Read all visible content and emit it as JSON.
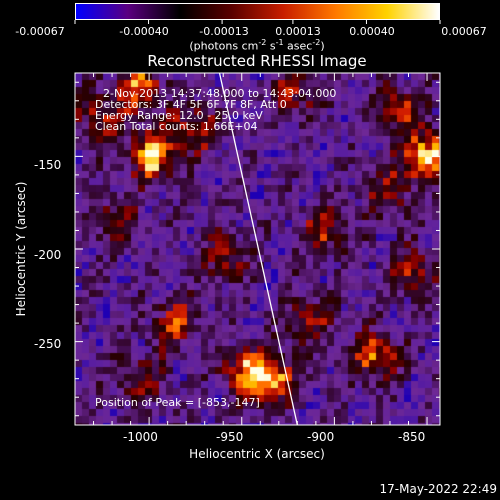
{
  "colorbar": {
    "tick_labels": [
      "-0.00067",
      "-0.00040",
      "-0.00013",
      "0.00013",
      "0.00040",
      "0.00067"
    ],
    "tick_values": [
      -0.00067,
      -0.0004,
      -0.00013,
      0.00013,
      0.0004,
      0.00067
    ],
    "units_pre": "(photons cm",
    "units_exp1": "-2",
    "units_mid1": " s",
    "units_exp2": "-1",
    "units_mid2": " asec",
    "units_exp3": "-2",
    "units_post": ")",
    "colors": [
      "#0000ff",
      "#5a0080",
      "#000000",
      "#5a0000",
      "#c81e00",
      "#ff7800",
      "#ffd200",
      "#ffffff"
    ]
  },
  "title": "Reconstructed RHESSI Image",
  "annotations": {
    "time_range": "2-Nov-2013 14:37:48.000 to 14:43:04.000",
    "detectors": "Detectors: 3F 4F 5F 6F 7F 8F, Att 0",
    "energy": "Energy Range: 12.0 - 25.0 keV",
    "clean": "Clean     Total counts: 1.66E+04",
    "peak": "Position of Peak = [-853,-147]"
  },
  "axes": {
    "xlabel": "Heliocentric X (arcsec)",
    "ylabel": "Heliocentric Y (arcsec)",
    "x_ticks": [
      "-1000",
      "-950",
      "-900",
      "-850"
    ],
    "y_ticks": [
      "-150",
      "-200",
      "-250"
    ]
  },
  "timestamp": "17-May-2022 22:49",
  "chart_data": {
    "type": "heatmap",
    "title": "Reconstructed RHESSI Image",
    "xlabel": "Heliocentric X (arcsec)",
    "ylabel": "Heliocentric Y (arcsec)",
    "xlim": [
      -1040,
      -843
    ],
    "ylim": [
      -295,
      -105
    ],
    "x_ticks": [
      -1000,
      -950,
      -900,
      -850
    ],
    "y_ticks": [
      -150,
      -200,
      -250
    ],
    "colorbar_range": [
      -0.00067,
      0.00067
    ],
    "colorbar_ticks": [
      -0.00067,
      -0.0004,
      -0.00013,
      0.00013,
      0.0004,
      0.00067
    ],
    "peak_position": [
      -853,
      -147
    ],
    "limb_line": [
      [
        -962,
        -105
      ],
      [
        -920,
        -295
      ]
    ],
    "grid": false,
    "bright_sources": [
      {
        "x": -1025,
        "y": -130,
        "level": 0.55
      },
      {
        "x": -998,
        "y": -150,
        "level": 0.9
      },
      {
        "x": -975,
        "y": -135,
        "level": 0.6
      },
      {
        "x": -1005,
        "y": -112,
        "level": 0.7
      },
      {
        "x": -1020,
        "y": -185,
        "level": 0.45
      },
      {
        "x": -985,
        "y": -240,
        "level": 0.55
      },
      {
        "x": -1005,
        "y": -270,
        "level": 0.45
      },
      {
        "x": -958,
        "y": -205,
        "level": 0.45
      },
      {
        "x": -950,
        "y": -265,
        "level": 0.55
      },
      {
        "x": -935,
        "y": -270,
        "level": 0.95
      },
      {
        "x": -915,
        "y": -238,
        "level": 0.5
      },
      {
        "x": -920,
        "y": -115,
        "level": 0.5
      },
      {
        "x": -905,
        "y": -190,
        "level": 0.55
      },
      {
        "x": -858,
        "y": -212,
        "level": 0.55
      },
      {
        "x": -878,
        "y": -258,
        "level": 0.7
      },
      {
        "x": -850,
        "y": -150,
        "level": 1.0
      },
      {
        "x": -866,
        "y": -125,
        "level": 0.6
      },
      {
        "x": -870,
        "y": -170,
        "level": 0.45
      }
    ]
  }
}
